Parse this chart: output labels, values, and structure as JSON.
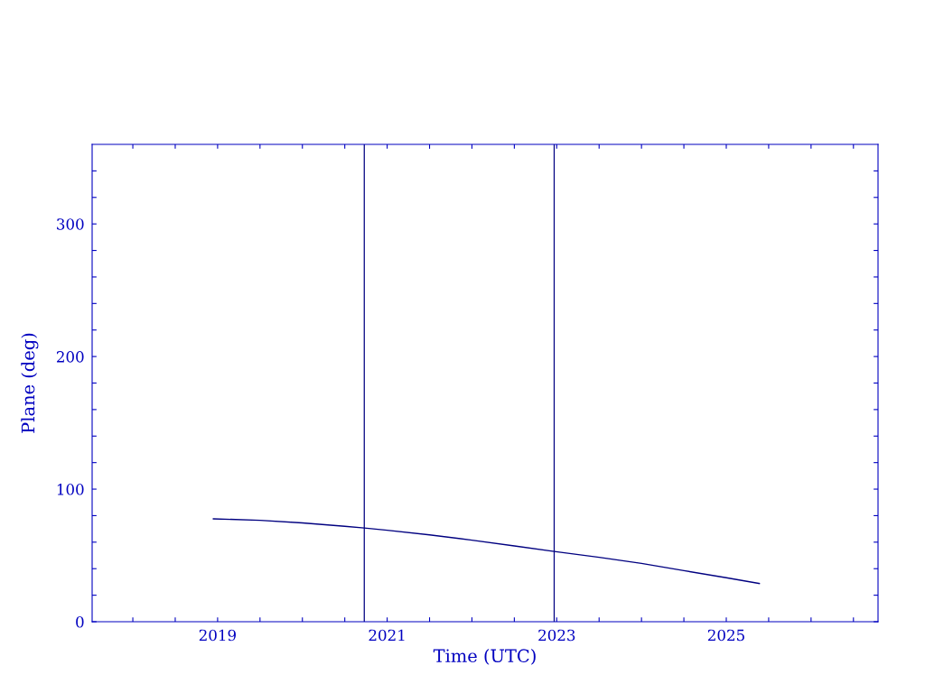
{
  "chart_data": {
    "type": "line",
    "xlabel": "Time (UTC)",
    "ylabel": "Plane (deg)",
    "x": [
      2018.95,
      2019.5,
      2020.0,
      2020.5,
      2020.73,
      2021.0,
      2021.5,
      2022.0,
      2022.5,
      2022.97,
      2023.5,
      2024.0,
      2024.5,
      2025.0,
      2025.39
    ],
    "series": [
      {
        "color": "#000080",
        "values": [
          77.6,
          76.5,
          74.5,
          72.0,
          70.7,
          69.0,
          65.5,
          61.5,
          57.2,
          53.0,
          48.6,
          44.0,
          38.5,
          33.2,
          28.8
        ]
      }
    ],
    "xlim": [
      2017.52,
      2026.79
    ],
    "xticks": [
      {
        "value": 2018.0,
        "label": null
      },
      {
        "value": 2018.5,
        "label": null
      },
      {
        "value": 2019,
        "label": "2019"
      },
      {
        "value": 2019.5,
        "label": null
      },
      {
        "value": 2020.0,
        "label": null
      },
      {
        "value": 2020.5,
        "label": null
      },
      {
        "value": 2021,
        "label": "2021"
      },
      {
        "value": 2021.5,
        "label": null
      },
      {
        "value": 2022.0,
        "label": null
      },
      {
        "value": 2022.5,
        "label": null
      },
      {
        "value": 2023,
        "label": "2023"
      },
      {
        "value": 2023.5,
        "label": null
      },
      {
        "value": 2024.0,
        "label": null
      },
      {
        "value": 2024.5,
        "label": null
      },
      {
        "value": 2025,
        "label": "2025"
      },
      {
        "value": 2025.5,
        "label": null
      },
      {
        "value": 2026.0,
        "label": null
      },
      {
        "value": 2026.5,
        "label": null
      }
    ],
    "ylim": [
      0,
      360
    ],
    "yticks": [
      0,
      {
        "value": 20,
        "label": null
      },
      {
        "value": 40,
        "label": null
      },
      {
        "value": 60,
        "label": null
      },
      {
        "value": 80,
        "label": null
      },
      100,
      {
        "value": 120,
        "label": null
      },
      {
        "value": 140,
        "label": null
      },
      {
        "value": 160,
        "label": null
      },
      {
        "value": 180,
        "label": null
      },
      200,
      {
        "value": 220,
        "label": null
      },
      {
        "value": 240,
        "label": null
      },
      {
        "value": 260,
        "label": null
      },
      {
        "value": 280,
        "label": null
      },
      300,
      {
        "value": 320,
        "label": null
      },
      {
        "value": 340,
        "label": null
      }
    ],
    "ref_lines": [
      {
        "axis": "x",
        "value": 2020.73,
        "color": "#000080"
      },
      {
        "axis": "x",
        "value": 2022.97,
        "color": "#000080"
      }
    ],
    "grid": false
  }
}
